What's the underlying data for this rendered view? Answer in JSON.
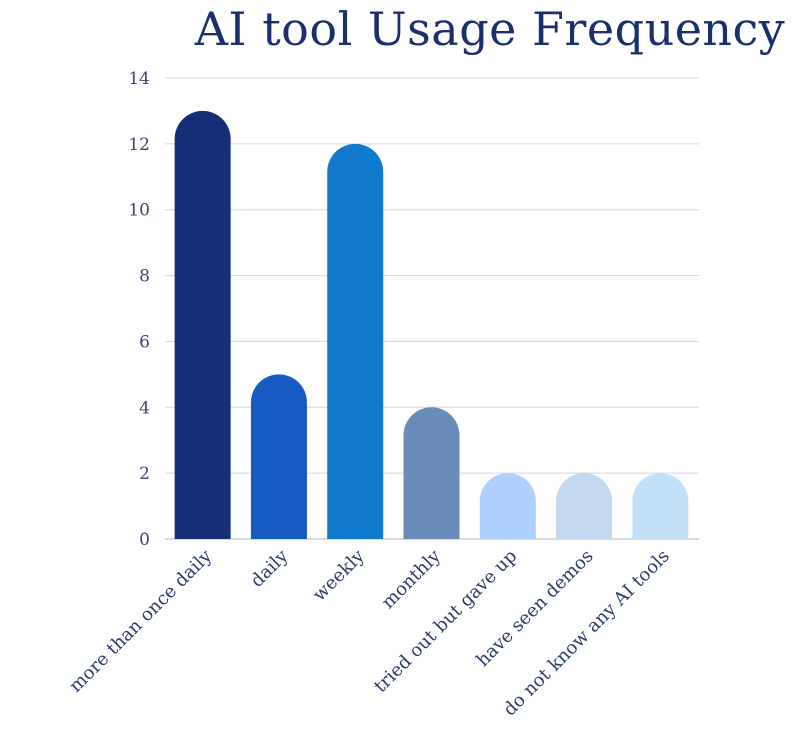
{
  "chart_data": {
    "type": "bar",
    "title": "AI tool Usage Frequency",
    "xlabel": "",
    "ylabel": "",
    "ylim": [
      0,
      14
    ],
    "yticks": [
      0,
      2,
      4,
      6,
      8,
      10,
      12,
      14
    ],
    "categories": [
      "more than once daily",
      "daily",
      "weekly",
      "monthly",
      "tried out but gave up",
      "have seen demos",
      "do not know any AI tools"
    ],
    "values": [
      13,
      5,
      12,
      4,
      2,
      2,
      2
    ],
    "colors": [
      "#142f76",
      "#175ac2",
      "#127bcd",
      "#698cb8",
      "#aed0ff",
      "#c3d9ef",
      "#c2e1f8"
    ],
    "grid": true,
    "legend": "none",
    "bar_shape": "rounded-top"
  }
}
